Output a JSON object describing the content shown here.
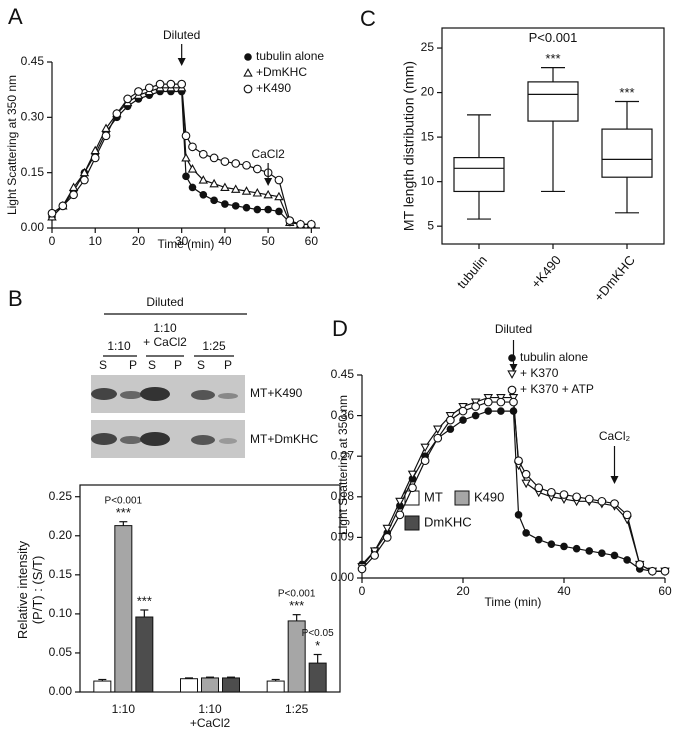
{
  "panel_labels": [
    "A",
    "B",
    "C",
    "D"
  ],
  "gel": {
    "header": "Diluted",
    "groups": [
      "1:10",
      "1:10\n+ CaCl2",
      "1:25"
    ],
    "lanes": [
      "S",
      "P",
      "S",
      "P",
      "S",
      "P"
    ],
    "rows": [
      "MT+K490",
      "MT+DmKHC"
    ]
  },
  "chart_data": [
    {
      "type": "line",
      "xlabel": "Time (min)",
      "ylabel": "Light Scattering at 350 nm",
      "x": [
        0,
        2.5,
        5,
        7.5,
        10,
        12.5,
        15,
        17.5,
        20,
        22.5,
        25,
        27.5,
        30,
        31,
        32.5,
        35,
        37.5,
        40,
        42.5,
        45,
        47.5,
        50,
        52.5,
        55,
        57.5,
        60
      ],
      "series": [
        {
          "name": "tubulin alone",
          "marker": "filled-circle",
          "color": "#111111",
          "values": [
            0.03,
            0.06,
            0.1,
            0.15,
            0.2,
            0.26,
            0.3,
            0.33,
            0.35,
            0.36,
            0.37,
            0.37,
            0.37,
            0.14,
            0.11,
            0.09,
            0.075,
            0.065,
            0.06,
            0.055,
            0.05,
            0.05,
            0.045,
            0.015,
            0.01,
            0.01
          ]
        },
        {
          "name": "+DmKHC",
          "marker": "open-triangle",
          "color": "#111111",
          "values": [
            0.03,
            0.06,
            0.11,
            0.15,
            0.21,
            0.27,
            0.31,
            0.34,
            0.36,
            0.37,
            0.38,
            0.38,
            0.38,
            0.19,
            0.16,
            0.13,
            0.12,
            0.11,
            0.105,
            0.1,
            0.095,
            0.09,
            0.085,
            0.015,
            0.01,
            0.01
          ]
        },
        {
          "name": "+K490",
          "marker": "open-circle",
          "color": "#111111",
          "values": [
            0.04,
            0.06,
            0.09,
            0.13,
            0.19,
            0.25,
            0.31,
            0.35,
            0.37,
            0.38,
            0.39,
            0.39,
            0.39,
            0.25,
            0.22,
            0.2,
            0.19,
            0.18,
            0.175,
            0.17,
            0.16,
            0.15,
            0.13,
            0.02,
            0.01,
            0.01
          ]
        }
      ],
      "xlim": [
        0,
        62
      ],
      "xticks": [
        0,
        10,
        20,
        30,
        40,
        50,
        60
      ],
      "ylim": [
        0,
        0.45
      ],
      "yticks": [
        {
          "value": 0,
          "label": "0.00"
        },
        {
          "value": 0.15,
          "label": "0.15"
        },
        {
          "value": 0.3,
          "label": "0.30"
        },
        {
          "value": 0.45,
          "label": "0.45"
        }
      ],
      "annotations": [
        "Diluted",
        "CaCl2"
      ],
      "legend": "top-right"
    },
    {
      "type": "bar",
      "ylabel": "Relative intensity\n(P/T) : (S/T)",
      "categories": [
        "1:10",
        "1:10\n+CaCl2",
        "1:25"
      ],
      "series": [
        {
          "name": "MT",
          "color": "#ffffff",
          "values": [
            0.014,
            0.017,
            0.014
          ],
          "errors": [
            0.002,
            0.001,
            0.002
          ],
          "annotations": [
            null,
            null,
            null
          ]
        },
        {
          "name": "K490",
          "color": "#a6a6a6",
          "values": [
            0.213,
            0.018,
            0.091
          ],
          "errors": [
            0.005,
            0.001,
            0.008
          ],
          "annotations": [
            [
              "P<0.001",
              "***"
            ],
            null,
            [
              "P<0.001",
              "***"
            ]
          ]
        },
        {
          "name": "DmKHC",
          "color": "#4d4d4d",
          "values": [
            0.096,
            0.018,
            0.037
          ],
          "errors": [
            0.009,
            0.001,
            0.011
          ],
          "annotations": [
            [
              "***"
            ],
            null,
            [
              "P<0.05",
              "*"
            ]
          ]
        }
      ],
      "ylim": [
        0,
        0.265
      ],
      "yticks": [
        {
          "value": 0,
          "label": "0.00"
        },
        {
          "value": 0.05,
          "label": "0.05"
        },
        {
          "value": 0.1,
          "label": "0.10"
        },
        {
          "value": 0.15,
          "label": "0.15"
        },
        {
          "value": 0.2,
          "label": "0.20"
        },
        {
          "value": 0.25,
          "label": "0.25"
        }
      ]
    },
    {
      "type": "box",
      "ylabel": "MT length distribution (mm)",
      "categories": [
        "tubulin",
        "+K490",
        "+DmKHC"
      ],
      "boxes": [
        {
          "min": 5.8,
          "q1": 8.9,
          "median": 11.5,
          "q3": 12.7,
          "max": 17.5
        },
        {
          "min": 8.9,
          "q1": 16.8,
          "median": 19.8,
          "q3": 21.2,
          "max": 22.8
        },
        {
          "min": 6.5,
          "q1": 10.5,
          "median": 12.5,
          "q3": 15.9,
          "max": 19
        }
      ],
      "annotations": [
        null,
        [
          "P<0.001",
          "***"
        ],
        [
          "***"
        ]
      ],
      "ylim": [
        3,
        27.25
      ],
      "yticks": [
        5,
        10,
        15,
        20,
        25
      ]
    },
    {
      "type": "line",
      "xlabel": "Time (min)",
      "ylabel": "Light Scattering at 350 nm",
      "x": [
        0,
        2.5,
        5,
        7.5,
        10,
        12.5,
        15,
        17.5,
        20,
        22.5,
        25,
        27.5,
        30,
        31,
        32.5,
        35,
        37.5,
        40,
        42.5,
        45,
        47.5,
        50,
        52.5,
        55,
        57.5,
        60
      ],
      "series": [
        {
          "name": "tubulin alone",
          "marker": "filled-circle",
          "color": "#111111",
          "values": [
            0.03,
            0.06,
            0.1,
            0.16,
            0.22,
            0.27,
            0.31,
            0.33,
            0.35,
            0.36,
            0.37,
            0.37,
            0.37,
            0.14,
            0.1,
            0.085,
            0.075,
            0.07,
            0.065,
            0.06,
            0.055,
            0.05,
            0.04,
            0.02,
            0.015,
            0.015
          ]
        },
        {
          "name": "+ K370",
          "marker": "open-triangle-down",
          "color": "#111111",
          "values": [
            0.025,
            0.06,
            0.11,
            0.17,
            0.23,
            0.29,
            0.33,
            0.36,
            0.38,
            0.39,
            0.4,
            0.4,
            0.4,
            0.25,
            0.21,
            0.19,
            0.18,
            0.175,
            0.17,
            0.17,
            0.165,
            0.16,
            0.13,
            0.03,
            0.015,
            0.015
          ]
        },
        {
          "name": "+ K370 + ATP",
          "marker": "open-circle",
          "color": "#111111",
          "values": [
            0.02,
            0.05,
            0.09,
            0.14,
            0.2,
            0.26,
            0.31,
            0.35,
            0.37,
            0.38,
            0.39,
            0.39,
            0.39,
            0.26,
            0.23,
            0.2,
            0.19,
            0.185,
            0.18,
            0.175,
            0.17,
            0.165,
            0.14,
            0.03,
            0.015,
            0.015
          ]
        }
      ],
      "xlim": [
        0,
        60
      ],
      "xticks": [
        0,
        20,
        40,
        60
      ],
      "ylim": [
        0,
        0.45
      ],
      "yticks": [
        {
          "value": 0,
          "label": "0.00"
        },
        {
          "value": 0.09,
          "label": "0.09"
        },
        {
          "value": 0.18,
          "label": "0.18"
        },
        {
          "value": 0.27,
          "label": "0.27"
        },
        {
          "value": 0.36,
          "label": "0.36"
        },
        {
          "value": 0.45,
          "label": "0.45"
        }
      ],
      "annotations": [
        "Diluted",
        "CaCl₂"
      ],
      "legend": "top-right"
    }
  ]
}
